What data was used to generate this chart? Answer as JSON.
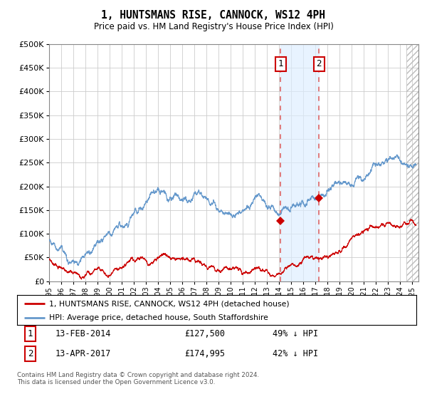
{
  "title": "1, HUNTSMANS RISE, CANNOCK, WS12 4PH",
  "subtitle": "Price paid vs. HM Land Registry's House Price Index (HPI)",
  "ylim": [
    0,
    500000
  ],
  "xlim_start": 1995.0,
  "xlim_end": 2025.5,
  "sale1_date": 2014.12,
  "sale1_price": 127500,
  "sale2_date": 2017.29,
  "sale2_price": 174995,
  "legend_red": "1, HUNTSMANS RISE, CANNOCK, WS12 4PH (detached house)",
  "legend_blue": "HPI: Average price, detached house, South Staffordshire",
  "annot1_label": "13-FEB-2014",
  "annot1_price": "£127,500",
  "annot1_pct": "49% ↓ HPI",
  "annot2_label": "13-APR-2017",
  "annot2_price": "£174,995",
  "annot2_pct": "42% ↓ HPI",
  "footnote": "Contains HM Land Registry data © Crown copyright and database right 2024.\nThis data is licensed under the Open Government Licence v3.0.",
  "bg_color": "#ffffff",
  "grid_color": "#cccccc",
  "red_line_color": "#cc0000",
  "blue_line_color": "#6699cc",
  "shade_color": "#ddeeff",
  "hatch_color": "#bbbbbb",
  "sale_dashed_color": "#dd6666"
}
